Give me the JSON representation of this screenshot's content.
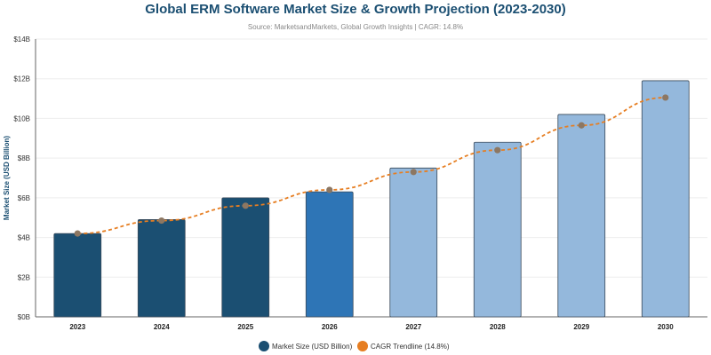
{
  "chart_data": {
    "type": "bar",
    "title": "Global ERM Software Market Size & Growth Projection (2023-2030)",
    "subtitle": "Source: MarketsandMarkets, Global Growth Insights | CAGR: 14.8%",
    "ylabel": "Market Size (USD Billion)",
    "xlabel": "",
    "ylim": [
      0,
      14
    ],
    "yticks": [
      0,
      2,
      4,
      6,
      8,
      10,
      12,
      14
    ],
    "ytick_labels": [
      "$0B",
      "$2B",
      "$4B",
      "$6B",
      "$8B",
      "$10B",
      "$12B",
      "$14B"
    ],
    "categories": [
      "2023",
      "2024",
      "2025",
      "2026",
      "2027",
      "2028",
      "2029",
      "2030"
    ],
    "series": [
      {
        "name": "Market Size (USD Billion)",
        "type": "bar",
        "values": [
          4.2,
          4.9,
          6.0,
          6.3,
          7.5,
          8.8,
          10.2,
          11.9
        ],
        "colors": [
          "#1b4f72",
          "#1b4f72",
          "#1b4f72",
          "#2e75b6",
          "#94b8dc",
          "#94b8dc",
          "#94b8dc",
          "#94b8dc"
        ]
      },
      {
        "name": "CAGR Trendline (14.8%)",
        "type": "line",
        "values": [
          4.2,
          4.85,
          5.6,
          6.4,
          7.3,
          8.4,
          9.65,
          11.05
        ],
        "color": "#e67e22",
        "marker_color": "#8d7762",
        "dashed": true
      }
    ],
    "grid": true,
    "legend_position": "bottom-center"
  }
}
